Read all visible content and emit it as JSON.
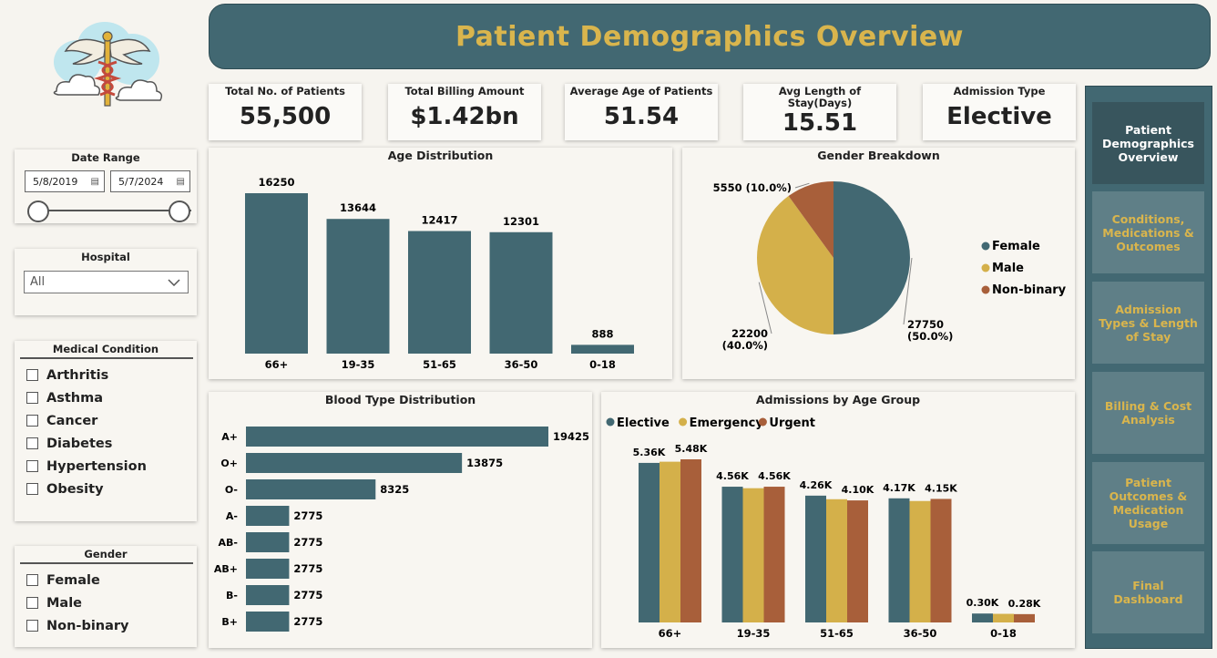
{
  "header": {
    "title": "Patient Demographics Overview"
  },
  "kpis": [
    {
      "label": "Total No. of Patients",
      "value": "55,500"
    },
    {
      "label": "Total Billing Amount",
      "value": "$1.42bn"
    },
    {
      "label": "Average Age of Patients",
      "value": "51.54"
    },
    {
      "label": "Avg Length of Stay(Days)",
      "value": "15.51"
    },
    {
      "label": "Admission Type",
      "value": "Elective"
    }
  ],
  "filters": {
    "date_range": {
      "title": "Date Range",
      "start": "5/8/2019",
      "end": "5/7/2024"
    },
    "hospital": {
      "title": "Hospital",
      "selected": "All"
    },
    "medical_condition": {
      "title": "Medical Condition",
      "items": [
        "Arthritis",
        "Asthma",
        "Cancer",
        "Diabetes",
        "Hypertension",
        "Obesity"
      ]
    },
    "gender": {
      "title": "Gender",
      "items": [
        "Female",
        "Male",
        "Non-binary"
      ]
    }
  },
  "nav": {
    "items": [
      "Patient Demographics Overview",
      "Conditions, Medications & Outcomes",
      "Admission Types & Length of Stay",
      "Billing & Cost Analysis",
      "Patient Outcomes & Medication Usage",
      "Final Dashboard"
    ],
    "active_index": 0
  },
  "colors": {
    "teal": "#426872",
    "gold": "#d4b04a",
    "rust": "#a85f3a"
  },
  "chart_data": [
    {
      "id": "age",
      "type": "bar",
      "title": "Age Distribution",
      "categories": [
        "66+",
        "19-35",
        "51-65",
        "36-50",
        "0-18"
      ],
      "values": [
        16250,
        13644,
        12417,
        12301,
        888
      ],
      "ylim": [
        0,
        16250
      ]
    },
    {
      "id": "gender",
      "type": "pie",
      "title": "Gender Breakdown",
      "labels": [
        "Female",
        "Male",
        "Non-binary"
      ],
      "values": [
        27750,
        22200,
        5550
      ],
      "percent_labels": [
        "(50.0%)",
        "(40.0%)",
        "(10.0%)"
      ],
      "legend": "right"
    },
    {
      "id": "blood",
      "type": "bar",
      "orientation": "horizontal",
      "title": "Blood Type Distribution",
      "categories": [
        "A+",
        "O+",
        "O-",
        "A-",
        "AB-",
        "AB+",
        "B-",
        "B+"
      ],
      "values": [
        19425,
        13875,
        8325,
        2775,
        2775,
        2775,
        2775,
        2775
      ],
      "xlim": [
        0,
        19425
      ]
    },
    {
      "id": "admissions",
      "type": "bar",
      "title": "Admissions by Age Group",
      "categories": [
        "66+",
        "19-35",
        "51-65",
        "36-50",
        "0-18"
      ],
      "legend": "top-left",
      "series": [
        {
          "name": "Elective",
          "values": [
            5360,
            4560,
            4260,
            4170,
            300
          ],
          "labels": [
            "5.36K",
            "4.56K",
            "4.26K",
            "4.17K",
            "0.30K"
          ]
        },
        {
          "name": "Emergency",
          "values": [
            5400,
            4510,
            4140,
            4080,
            290
          ],
          "labels": [
            "",
            "",
            "",
            "",
            ""
          ]
        },
        {
          "name": "Urgent",
          "values": [
            5480,
            4560,
            4100,
            4150,
            280
          ],
          "labels": [
            "5.48K",
            "4.56K",
            "4.10K",
            "4.15K",
            "0.28K"
          ]
        }
      ],
      "ylim": [
        0,
        5480
      ]
    }
  ]
}
